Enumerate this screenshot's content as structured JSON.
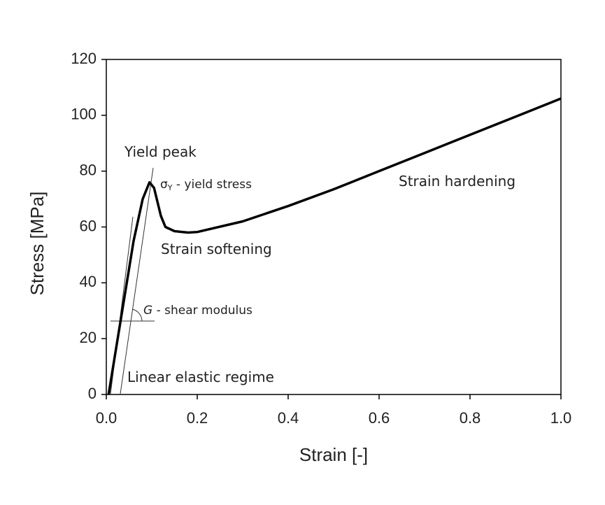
{
  "chart_data": {
    "type": "line",
    "xlabel": "Strain [-]",
    "ylabel": "Stress [MPa]",
    "xlim": [
      0,
      1
    ],
    "ylim": [
      0,
      120
    ],
    "xticks": [
      {
        "value": 0,
        "label": "0.0"
      },
      0.2,
      0.4,
      0.6,
      0.8,
      {
        "value": 1,
        "label": "1.0"
      }
    ],
    "yticks": [
      0,
      20,
      40,
      60,
      80,
      100,
      120
    ],
    "series": [
      {
        "color": "#000000",
        "x": [
          0.005,
          0.02,
          0.04,
          0.06,
          0.08,
          0.095,
          0.105,
          0.12,
          0.13,
          0.15,
          0.18,
          0.2,
          0.3,
          0.4,
          0.5,
          0.6,
          0.7,
          0.8,
          0.9,
          1.0
        ],
        "values": [
          0,
          15,
          35,
          55,
          70,
          76,
          74,
          64,
          60,
          58.5,
          58,
          58.2,
          62,
          67.5,
          73.5,
          80,
          86.5,
          93,
          99.5,
          106
        ]
      }
    ],
    "annotations": [
      {
        "text": "Yield peak"
      },
      {
        "symbol": "σ",
        "subscript": "Y",
        "text": " - yield stress"
      },
      {
        "text": "Strain softening"
      },
      {
        "text": "Strain hardening"
      },
      {
        "symbol": "G",
        "text": " - shear modulus"
      },
      {
        "text": "Linear elastic regime"
      }
    ]
  }
}
